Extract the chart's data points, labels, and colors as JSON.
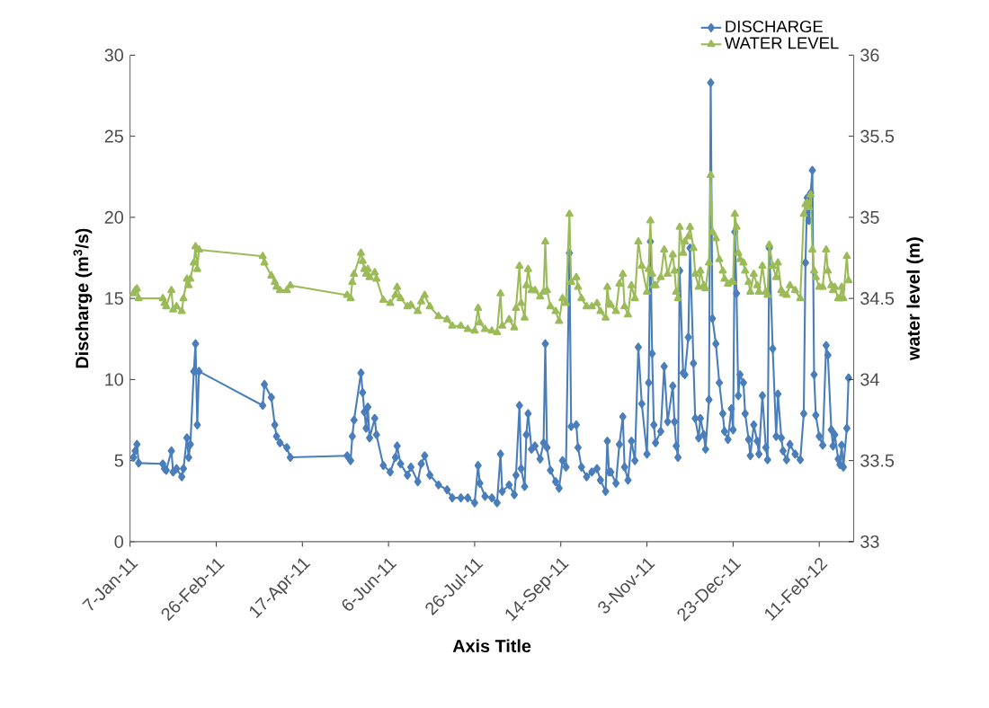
{
  "chart_data": {
    "type": "line",
    "xlabel": "Axis Title",
    "ylabel": "Discharge (m$^{3}$/s)",
    "y2label": "water level (m)",
    "xlim": [
      "2011-01-07",
      "2012-03-02"
    ],
    "xticks": [
      {
        "value": "2011-01-07",
        "label": "7-Jan-11"
      },
      {
        "value": "2011-02-26",
        "label": "26-Feb-11"
      },
      {
        "value": "2011-04-17",
        "label": "17-Apr-11"
      },
      {
        "value": "2011-06-06",
        "label": "6-Jun-11"
      },
      {
        "value": "2011-07-26",
        "label": "26-Jul-11"
      },
      {
        "value": "2011-09-14",
        "label": "14-Sep-11"
      },
      {
        "value": "2011-11-03",
        "label": "3-Nov-11"
      },
      {
        "value": "2011-12-23",
        "label": "23-Dec-11"
      },
      {
        "value": "2012-02-11",
        "label": "11-Feb-12"
      }
    ],
    "ylim": [
      0,
      30
    ],
    "yticks": [
      0,
      5,
      10,
      15,
      20,
      25,
      30
    ],
    "y2lim": [
      33,
      36
    ],
    "y2ticks": [
      33,
      33.5,
      34,
      34.5,
      35,
      35.5,
      36
    ],
    "legend": "top right",
    "grid": false,
    "x": [
      "2011-01-09",
      "2011-01-10",
      "2011-01-11",
      "2011-01-12",
      "2011-01-26",
      "2011-01-27",
      "2011-01-28",
      "2011-01-31",
      "2011-02-01",
      "2011-02-03",
      "2011-02-06",
      "2011-02-07",
      "2011-02-09",
      "2011-02-10",
      "2011-02-11",
      "2011-02-13",
      "2011-02-14",
      "2011-02-15",
      "2011-02-16",
      "2011-03-25",
      "2011-03-26",
      "2011-03-30",
      "2011-04-01",
      "2011-04-02",
      "2011-04-04",
      "2011-04-08",
      "2011-04-10",
      "2011-05-13",
      "2011-05-15",
      "2011-05-16",
      "2011-05-17",
      "2011-05-21",
      "2011-05-22",
      "2011-05-23",
      "2011-05-24",
      "2011-05-25",
      "2011-05-26",
      "2011-05-29",
      "2011-05-30",
      "2011-06-03",
      "2011-06-07",
      "2011-06-10",
      "2011-06-11",
      "2011-06-13",
      "2011-06-17",
      "2011-06-19",
      "2011-06-23",
      "2011-06-25",
      "2011-06-27",
      "2011-06-30",
      "2011-07-05",
      "2011-07-10",
      "2011-07-13",
      "2011-07-18",
      "2011-07-22",
      "2011-07-26",
      "2011-07-28",
      "2011-07-29",
      "2011-08-01",
      "2011-08-05",
      "2011-08-08",
      "2011-08-10",
      "2011-08-11",
      "2011-08-15",
      "2011-08-18",
      "2011-08-19",
      "2011-08-21",
      "2011-08-22",
      "2011-08-24",
      "2011-08-25",
      "2011-08-26",
      "2011-08-28",
      "2011-08-30",
      "2011-09-02",
      "2011-09-04",
      "2011-09-05",
      "2011-09-06",
      "2011-09-08",
      "2011-09-11",
      "2011-09-13",
      "2011-09-15",
      "2011-09-17",
      "2011-09-19",
      "2011-09-20",
      "2011-09-23",
      "2011-09-24",
      "2011-09-26",
      "2011-09-29",
      "2011-10-02",
      "2011-10-05",
      "2011-10-07",
      "2011-10-10",
      "2011-10-11",
      "2011-10-12",
      "2011-10-13",
      "2011-10-16",
      "2011-10-18",
      "2011-10-20",
      "2011-10-21",
      "2011-10-23",
      "2011-10-25",
      "2011-10-27",
      "2011-10-29",
      "2011-10-31",
      "2011-11-03",
      "2011-11-04",
      "2011-11-05",
      "2011-11-06",
      "2011-11-07",
      "2011-11-08",
      "2011-11-11",
      "2011-11-13",
      "2011-11-15",
      "2011-11-18",
      "2011-11-19",
      "2011-11-20",
      "2011-11-21",
      "2011-11-22",
      "2011-11-24",
      "2011-11-25",
      "2011-11-27",
      "2011-11-28",
      "2011-11-30",
      "2011-12-01",
      "2011-12-03",
      "2011-12-04",
      "2011-12-06",
      "2011-12-07",
      "2011-12-09",
      "2011-12-10",
      "2011-12-11",
      "2011-12-13",
      "2011-12-15",
      "2011-12-17",
      "2011-12-18",
      "2011-12-20",
      "2011-12-22",
      "2011-12-23",
      "2011-12-24",
      "2011-12-25",
      "2011-12-26",
      "2011-12-27",
      "2011-12-29",
      "2011-12-30",
      "2012-01-01",
      "2012-01-02",
      "2012-01-04",
      "2012-01-06",
      "2012-01-07",
      "2012-01-09",
      "2012-01-11",
      "2012-01-12",
      "2012-01-13",
      "2012-01-15",
      "2012-01-17",
      "2012-01-18",
      "2012-01-20",
      "2012-01-21",
      "2012-01-23",
      "2012-01-25",
      "2012-01-28",
      "2012-01-31",
      "2012-02-02",
      "2012-02-03",
      "2012-02-04",
      "2012-02-05",
      "2012-02-06",
      "2012-02-07",
      "2012-02-08",
      "2012-02-09",
      "2012-02-11",
      "2012-02-13",
      "2012-02-15",
      "2012-02-16",
      "2012-02-18",
      "2012-02-19",
      "2012-02-20",
      "2012-02-22",
      "2012-02-23",
      "2012-02-24",
      "2012-02-25",
      "2012-02-27",
      "2012-02-28"
    ],
    "series": [
      {
        "name": "DISCHARGE",
        "color": "#4a7ebb",
        "marker": "diamond",
        "values": [
          5.2,
          5.6,
          6.0,
          4.85,
          4.8,
          4.5,
          4.4,
          5.6,
          4.3,
          4.5,
          4.0,
          4.5,
          6.4,
          5.2,
          6.0,
          10.5,
          12.2,
          7.2,
          10.5,
          8.4,
          9.7,
          8.9,
          7.2,
          6.5,
          6.1,
          5.8,
          5.2,
          5.3,
          5.0,
          6.5,
          7.5,
          10.4,
          9.2,
          8.0,
          7.0,
          8.3,
          6.4,
          7.6,
          6.6,
          4.7,
          4.3,
          5.2,
          5.9,
          4.8,
          4.1,
          4.6,
          3.7,
          4.8,
          5.3,
          4.1,
          3.5,
          3.2,
          2.7,
          2.7,
          2.7,
          2.4,
          4.7,
          3.6,
          2.8,
          2.7,
          2.4,
          5.4,
          3.1,
          3.5,
          2.9,
          4.1,
          8.4,
          4.5,
          3.4,
          6.6,
          7.9,
          5.7,
          5.9,
          5.1,
          6.1,
          12.2,
          5.8,
          4.4,
          3.7,
          3.3,
          5.0,
          4.6,
          17.8,
          7.1,
          7.2,
          5.8,
          4.6,
          4.0,
          4.3,
          4.5,
          3.8,
          3.1,
          6.2,
          4.3,
          4.3,
          3.6,
          6.0,
          7.7,
          4.6,
          3.8,
          6.2,
          5.0,
          12.0,
          8.5,
          5.4,
          9.8,
          18.5,
          11.6,
          7.2,
          6.1,
          6.8,
          10.8,
          7.4,
          9.6,
          7.4,
          5.9,
          5.2,
          16.7,
          10.4,
          10.3,
          12.6,
          18.1,
          11.0,
          7.6,
          6.4,
          7.6,
          6.6,
          5.7,
          8.75,
          28.3,
          13.75,
          12.2,
          9.8,
          7.9,
          6.8,
          6.3,
          8.2,
          6.9,
          19.1,
          15.3,
          9.0,
          10.3,
          9.8,
          7.9,
          6.3,
          5.3,
          7.2,
          6.2,
          5.4,
          9.0,
          5.8,
          5.05,
          18.1,
          11.9,
          6.5,
          9.1,
          6.4,
          5.6,
          5.05,
          6.0,
          5.4,
          5.05,
          7.9,
          17.2,
          21.2,
          19.8,
          21.5,
          22.9,
          10.3,
          7.8,
          6.5,
          5.95,
          12.1,
          11.5,
          6.9,
          5.9,
          6.6,
          5.1,
          4.75,
          5.95,
          4.6,
          7.0,
          10.1
        ]
      },
      {
        "name": "WATER LEVEL",
        "color": "#9bbb59",
        "marker": "triangle",
        "axis": "y2",
        "values": [
          34.53,
          34.55,
          34.56,
          34.5,
          34.5,
          34.47,
          34.45,
          34.55,
          34.43,
          34.45,
          34.42,
          34.5,
          34.62,
          34.58,
          34.62,
          34.72,
          34.82,
          34.68,
          34.8,
          34.76,
          34.72,
          34.64,
          34.6,
          34.57,
          34.55,
          34.55,
          34.58,
          34.52,
          34.5,
          34.6,
          34.65,
          34.78,
          34.73,
          34.68,
          34.65,
          34.68,
          34.63,
          34.66,
          34.62,
          34.49,
          34.47,
          34.52,
          34.57,
          34.5,
          34.45,
          34.46,
          34.42,
          34.48,
          34.52,
          34.45,
          34.39,
          34.37,
          34.33,
          34.33,
          34.31,
          34.3,
          34.44,
          34.35,
          34.31,
          34.3,
          34.29,
          34.53,
          34.33,
          34.37,
          34.32,
          34.44,
          34.7,
          34.47,
          34.38,
          34.58,
          34.68,
          34.55,
          34.55,
          34.51,
          34.54,
          34.85,
          34.55,
          34.45,
          34.42,
          34.36,
          34.5,
          34.47,
          35.02,
          34.6,
          34.63,
          34.57,
          34.5,
          34.45,
          34.45,
          34.47,
          34.42,
          34.38,
          34.57,
          34.47,
          34.46,
          34.42,
          34.59,
          34.65,
          34.45,
          34.4,
          34.58,
          34.5,
          34.85,
          34.7,
          34.54,
          34.68,
          34.98,
          34.65,
          34.58,
          34.58,
          34.63,
          34.8,
          34.65,
          34.77,
          34.67,
          34.54,
          34.5,
          34.94,
          34.78,
          34.85,
          34.88,
          34.94,
          34.81,
          34.65,
          34.57,
          34.67,
          34.58,
          34.56,
          34.72,
          35.26,
          34.91,
          34.87,
          34.74,
          34.67,
          34.62,
          34.59,
          34.6,
          34.6,
          35.02,
          34.94,
          34.78,
          34.74,
          34.72,
          34.67,
          34.6,
          34.54,
          34.65,
          34.58,
          34.54,
          34.7,
          34.54,
          34.52,
          34.83,
          34.7,
          34.63,
          34.72,
          34.55,
          34.53,
          34.52,
          34.58,
          34.55,
          34.5,
          35.02,
          35.08,
          35.09,
          35.06,
          35.14,
          34.8,
          34.67,
          34.63,
          34.57,
          34.57,
          34.8,
          34.67,
          34.58,
          34.55,
          34.57,
          34.5,
          34.5,
          34.57,
          34.5,
          34.76,
          34.61
        ]
      }
    ]
  }
}
